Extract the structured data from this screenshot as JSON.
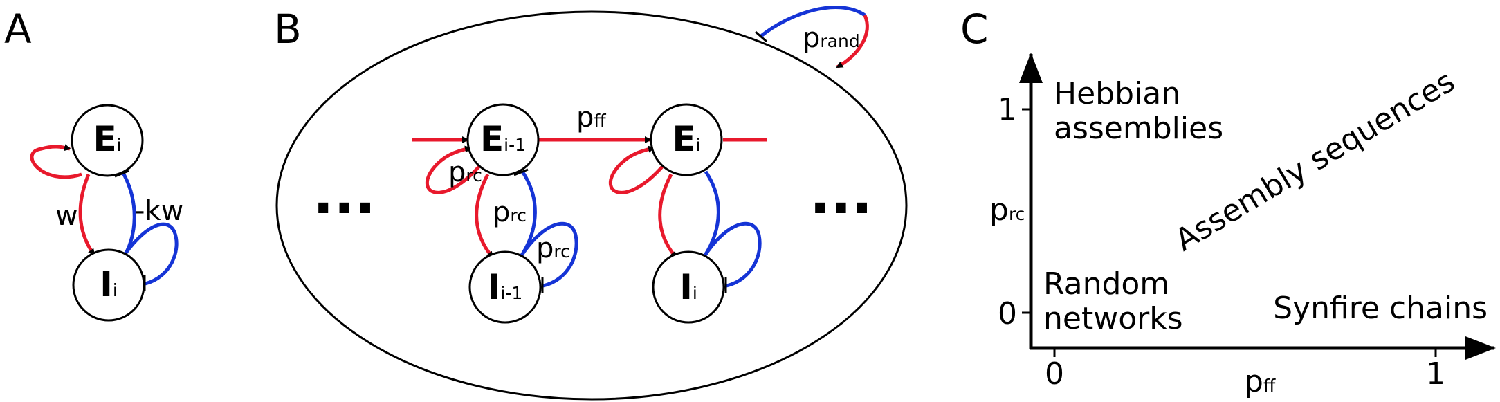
{
  "panels": {
    "a": "A",
    "b": "B",
    "c": "C"
  },
  "colors": {
    "excitatory": "#e8192c",
    "inhibitory": "#1534d6"
  },
  "panel_a": {
    "e_node": {
      "main": "E",
      "sub": "i"
    },
    "i_node": {
      "main": "I",
      "sub": "i"
    },
    "weight_label": "w",
    "neg_weight_label": "-kw"
  },
  "panel_b": {
    "nodes": {
      "e_prev": {
        "main": "E",
        "sub": "i-1"
      },
      "i_prev": {
        "main": "I",
        "sub": "i-1"
      },
      "e_curr": {
        "main": "E",
        "sub": "i"
      },
      "i_curr": {
        "main": "I",
        "sub": "i"
      }
    },
    "p_ff": {
      "main": "p",
      "sub": "ff"
    },
    "p_rc": {
      "main": "p",
      "sub": "rc"
    },
    "p_rand": {
      "main": "p",
      "sub": "rand"
    },
    "ellipsis": "..."
  },
  "panel_c": {
    "x_axis": {
      "main": "p",
      "sub": "ff"
    },
    "y_axis": {
      "main": "p",
      "sub": "rc"
    },
    "x_ticks": [
      "0",
      "1"
    ],
    "y_ticks": [
      "0",
      "1"
    ],
    "regions": {
      "hebbian": [
        "Hebbian",
        "assemblies"
      ],
      "random": [
        "Random",
        "networks"
      ],
      "synfire": "Synfire chains",
      "sequences": "Assembly sequences"
    }
  }
}
